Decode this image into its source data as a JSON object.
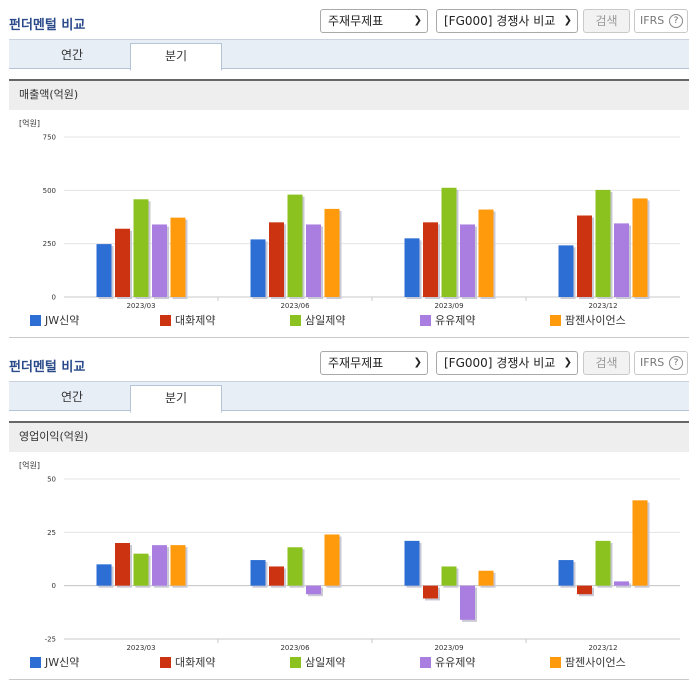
{
  "colors": {
    "series": [
      "#2d6ed4",
      "#cc3311",
      "#8cc21f",
      "#a97ee0",
      "#ff9a0d"
    ],
    "title": "#2a4a8a"
  },
  "sections": [
    {
      "title": "펀더멘털 비교",
      "select_statement": "주재무제표",
      "select_compare": "[FG000] 경쟁사 비교",
      "search_label": "검색",
      "ifrs_label": "IFRS",
      "help_glyph": "?",
      "tabs": [
        {
          "label": "연간",
          "active": false
        },
        {
          "label": "분기",
          "active": true
        }
      ],
      "metric_title": "매출액(억원)",
      "unit_label": "[억원]"
    },
    {
      "title": "펀더멘털 비교",
      "select_statement": "주재무제표",
      "select_compare": "[FG000] 경쟁사 비교",
      "search_label": "검색",
      "ifrs_label": "IFRS",
      "help_glyph": "?",
      "tabs": [
        {
          "label": "연간",
          "active": false
        },
        {
          "label": "분기",
          "active": true
        }
      ],
      "metric_title": "영업이익(억원)",
      "unit_label": "[억원]"
    }
  ],
  "chart_data": [
    {
      "type": "bar",
      "title": "매출액(억원)",
      "ylabel": "[억원]",
      "categories": [
        "2023/03",
        "2023/06",
        "2023/09",
        "2023/12"
      ],
      "ylim": [
        0,
        750
      ],
      "yticks": [
        0,
        250,
        500,
        750
      ],
      "grid": true,
      "legend": "bottom",
      "series": [
        {
          "name": "JW신약",
          "values": [
            248,
            270,
            275,
            242
          ]
        },
        {
          "name": "대화제약",
          "values": [
            320,
            350,
            350,
            382
          ]
        },
        {
          "name": "삼일제약",
          "values": [
            458,
            480,
            512,
            502
          ]
        },
        {
          "name": "유유제약",
          "values": [
            340,
            340,
            340,
            345
          ]
        },
        {
          "name": "팜젠사이언스",
          "values": [
            372,
            413,
            410,
            462
          ]
        }
      ]
    },
    {
      "type": "bar",
      "title": "영업이익(억원)",
      "ylabel": "[억원]",
      "categories": [
        "2023/03",
        "2023/06",
        "2023/09",
        "2023/12"
      ],
      "ylim": [
        -25,
        50
      ],
      "yticks": [
        -25,
        0,
        25,
        50
      ],
      "grid": true,
      "legend": "bottom",
      "series": [
        {
          "name": "JW신약",
          "values": [
            10,
            12,
            21,
            12
          ]
        },
        {
          "name": "대화제약",
          "values": [
            20,
            9,
            -6,
            -4
          ]
        },
        {
          "name": "삼일제약",
          "values": [
            15,
            18,
            9,
            21
          ]
        },
        {
          "name": "유유제약",
          "values": [
            19,
            -4,
            -16,
            2
          ]
        },
        {
          "name": "팜젠사이언스",
          "values": [
            19,
            24,
            7,
            40
          ]
        }
      ]
    }
  ]
}
